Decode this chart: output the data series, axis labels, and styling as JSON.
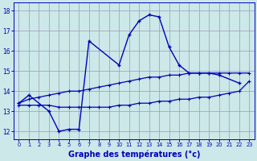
{
  "main_x": [
    0,
    1,
    3,
    4,
    5,
    6,
    7,
    10,
    11,
    12,
    13,
    14,
    15,
    16,
    17,
    18,
    19,
    20,
    22
  ],
  "main_y": [
    13.4,
    13.8,
    13.0,
    12.0,
    12.1,
    12.1,
    16.5,
    15.3,
    16.8,
    17.5,
    17.8,
    17.7,
    16.2,
    15.3,
    14.9,
    14.9,
    14.9,
    14.8,
    14.4
  ],
  "min_x": [
    0,
    1,
    2,
    3,
    4,
    5,
    6,
    7,
    8,
    9,
    10,
    11,
    12,
    13,
    14,
    15,
    16,
    17,
    18,
    19,
    20,
    21,
    22,
    23
  ],
  "min_y": [
    13.3,
    13.3,
    13.3,
    13.3,
    13.2,
    13.2,
    13.2,
    13.2,
    13.2,
    13.2,
    13.3,
    13.3,
    13.4,
    13.4,
    13.5,
    13.5,
    13.6,
    13.6,
    13.7,
    13.7,
    13.8,
    13.9,
    14.0,
    14.5
  ],
  "max_x": [
    0,
    1,
    2,
    3,
    4,
    5,
    6,
    7,
    8,
    9,
    10,
    11,
    12,
    13,
    14,
    15,
    16,
    17,
    18,
    19,
    20,
    21,
    22,
    23
  ],
  "max_y": [
    13.4,
    13.6,
    13.7,
    13.8,
    13.9,
    14.0,
    14.0,
    14.1,
    14.2,
    14.3,
    14.4,
    14.5,
    14.6,
    14.7,
    14.7,
    14.8,
    14.8,
    14.9,
    14.9,
    14.9,
    14.9,
    14.9,
    14.9,
    14.9
  ],
  "line_color": "#0000bb",
  "bg_color": "#cce8e8",
  "grid_color": "#9999bb",
  "xlabel": "Graphe des températures (°c)",
  "ylim": [
    11.6,
    18.4
  ],
  "xlim": [
    -0.5,
    23.5
  ],
  "yticks": [
    12,
    13,
    14,
    15,
    16,
    17,
    18
  ],
  "xticks": [
    0,
    1,
    2,
    3,
    4,
    5,
    6,
    7,
    8,
    9,
    10,
    11,
    12,
    13,
    14,
    15,
    16,
    17,
    18,
    19,
    20,
    21,
    22,
    23
  ],
  "tick_fontsize": 5.5,
  "xlabel_fontsize": 7
}
